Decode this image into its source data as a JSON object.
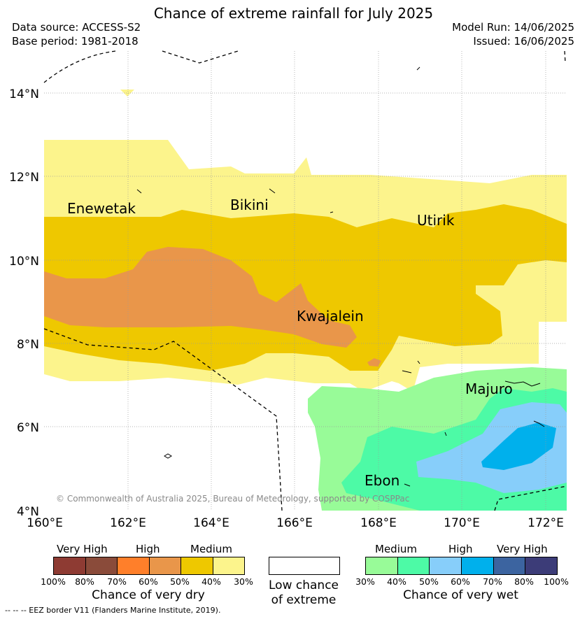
{
  "title": "Chance of extreme rainfall for July 2025",
  "header": {
    "data_source": "Data source: ACCESS-S2",
    "base_period": "Base period: 1981-2018",
    "model_run": "Model Run: 14/06/2025",
    "issued": "Issued: 16/06/2025"
  },
  "map": {
    "lon_ticks": [
      "160°E",
      "162°E",
      "164°E",
      "166°E",
      "168°E",
      "170°E",
      "172°E"
    ],
    "lat_ticks": [
      "4°N",
      "6°N",
      "8°N",
      "10°N",
      "12°N",
      "14°N"
    ],
    "places": [
      "Enewetak",
      "Bikini",
      "Utirik",
      "Kwajalein",
      "Majuro",
      "Ebon"
    ],
    "copyright": "© Commonwealth of Australia 2025, Bureau of Meteorology, supported by COSPPac"
  },
  "legend": {
    "dry": {
      "categories": [
        "Very High",
        "High",
        "Medium"
      ],
      "ticks": [
        "100%",
        "80%",
        "70%",
        "60%",
        "50%",
        "40%",
        "30%"
      ],
      "colors": [
        "#8e3b33",
        "#8a4b3a",
        "#ff7f2a",
        "#e9964a",
        "#eec800",
        "#fcf48c"
      ],
      "title": "Chance of very dry"
    },
    "neutral": {
      "title": "Low chance of extreme",
      "color": "#ffffff"
    },
    "wet": {
      "categories": [
        "Medium",
        "High",
        "Very High"
      ],
      "ticks": [
        "30%",
        "40%",
        "50%",
        "60%",
        "70%",
        "80%",
        "100%"
      ],
      "colors": [
        "#98fb98",
        "#4dfaa6",
        "#87cefa",
        "#00b0ec",
        "#3c64a0",
        "#3c3c78"
      ],
      "title": "Chance of very wet"
    },
    "eez_note": "-- -- -- EEZ border V11 (Flanders Marine Institute, 2019)."
  }
}
